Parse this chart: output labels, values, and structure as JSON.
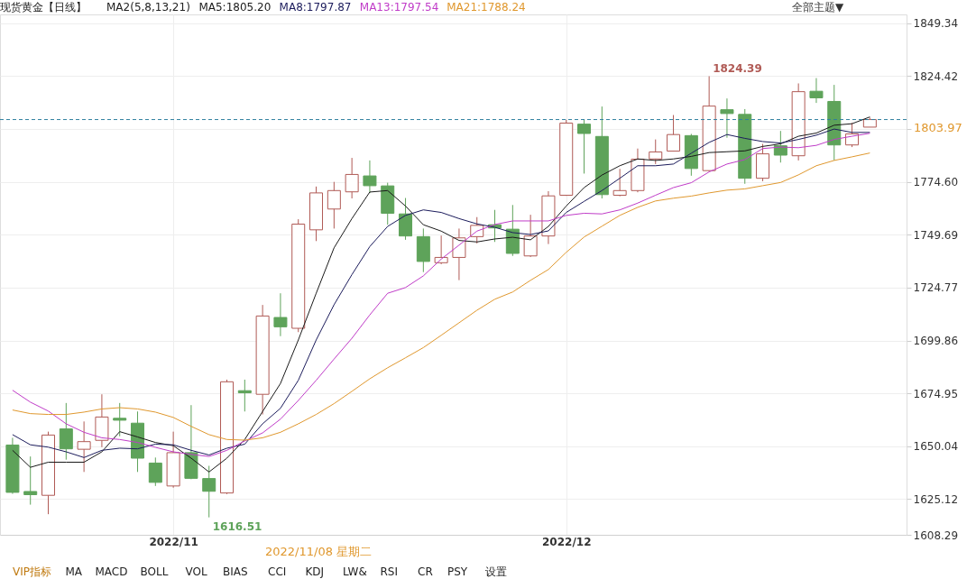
{
  "chart_data": {
    "type": "candlestick",
    "title": "现货黄金【日线】",
    "legend_title": "MA2(5,8,13,21)",
    "legend": "top",
    "grid": true,
    "categories": [
      null,
      null,
      null,
      null,
      null,
      null,
      null,
      null,
      null,
      "2022/11",
      null,
      null,
      null,
      null,
      null,
      null,
      null,
      null,
      null,
      null,
      null,
      null,
      null,
      null,
      null,
      null,
      null,
      null,
      null,
      null,
      null,
      "2022/12",
      null,
      null,
      null,
      null,
      null,
      null,
      null,
      null,
      null,
      null,
      null,
      null,
      null,
      null,
      null,
      null,
      null
    ],
    "ohlc": [
      [
        1650.6,
        1654.0,
        1627.6,
        1628.3
      ],
      [
        1628.7,
        1645.2,
        1622.5,
        1627.2
      ],
      [
        1626.9,
        1656.9,
        1618.0,
        1655.3
      ],
      [
        1658.2,
        1670.4,
        1643.7,
        1648.8
      ],
      [
        1648.6,
        1661.7,
        1637.9,
        1652.2
      ],
      [
        1652.8,
        1674.5,
        1649.6,
        1663.8
      ],
      [
        1663.2,
        1670.4,
        1654.7,
        1662.3
      ],
      [
        1660.9,
        1666.4,
        1637.9,
        1644.4
      ],
      [
        1642.1,
        1644.7,
        1631.3,
        1633.0
      ],
      [
        1631.3,
        1656.9,
        1630.5,
        1647.0
      ],
      [
        1647.0,
        1669.4,
        1634.5,
        1634.9
      ],
      [
        1634.8,
        1640.8,
        1616.51,
        1628.8
      ],
      [
        1628.0,
        1681.4,
        1627.5,
        1680.4
      ],
      [
        1676.2,
        1681.4,
        1666.4,
        1675.2
      ],
      [
        1674.5,
        1716.6,
        1665.0,
        1711.4
      ],
      [
        1710.7,
        1722.1,
        1701.9,
        1706.3
      ],
      [
        1705.6,
        1757.0,
        1703.8,
        1754.7
      ],
      [
        1752.0,
        1772.4,
        1746.7,
        1769.4
      ],
      [
        1761.8,
        1774.6,
        1752.6,
        1770.5
      ],
      [
        1769.9,
        1785.9,
        1766.8,
        1778.1
      ],
      [
        1777.4,
        1784.7,
        1769.3,
        1772.8
      ],
      [
        1772.7,
        1774.2,
        1754.4,
        1759.8
      ],
      [
        1759.5,
        1767.0,
        1747.3,
        1749.1
      ],
      [
        1748.8,
        1752.6,
        1732.1,
        1737.1
      ],
      [
        1736.5,
        1749.3,
        1735.8,
        1739.0
      ],
      [
        1739.0,
        1752.6,
        1728.3,
        1748.2
      ],
      [
        1748.8,
        1758.0,
        1745.6,
        1754.1
      ],
      [
        1754.4,
        1761.4,
        1746.3,
        1752.9
      ],
      [
        1752.3,
        1763.7,
        1739.7,
        1740.9
      ],
      [
        1739.7,
        1759.1,
        1739.2,
        1749.1
      ],
      [
        1749.1,
        1770.2,
        1745.3,
        1768.0
      ],
      [
        1768.3,
        1803.9,
        1768.0,
        1802.3
      ],
      [
        1801.8,
        1804.2,
        1778.5,
        1797.4
      ],
      [
        1796.0,
        1810.1,
        1766.8,
        1768.6
      ],
      [
        1768.3,
        1780.7,
        1767.8,
        1770.5
      ],
      [
        1770.5,
        1790.3,
        1769.7,
        1785.3
      ],
      [
        1785.4,
        1794.6,
        1783.0,
        1788.7
      ],
      [
        1789.1,
        1806.1,
        1788.9,
        1796.9
      ],
      [
        1796.4,
        1797.2,
        1777.5,
        1780.9
      ],
      [
        1779.9,
        1824.39,
        1779.6,
        1810.3
      ],
      [
        1808.6,
        1813.9,
        1795.4,
        1806.8
      ],
      [
        1806.4,
        1808.9,
        1773.7,
        1776.3
      ],
      [
        1776.3,
        1792.5,
        1774.9,
        1787.8
      ],
      [
        1791.6,
        1798.6,
        1783.7,
        1787.2
      ],
      [
        1786.9,
        1821.0,
        1784.7,
        1817.1
      ],
      [
        1817.3,
        1823.5,
        1811.8,
        1814.2
      ],
      [
        1812.5,
        1820.3,
        1784.7,
        1792.0
      ],
      [
        1792.0,
        1802.4,
        1791.0,
        1797.2
      ],
      [
        1800.4,
        1804.9,
        1800.4,
        1803.97
      ]
    ],
    "colors": [
      "#5ea35a",
      "#5ea35a",
      "#b05a55",
      "#5ea35a",
      "#b05a55",
      "#b05a55",
      "#5ea35a",
      "#5ea35a",
      "#5ea35a",
      "#b05a55",
      "#5ea35a",
      "#5ea35a",
      "#b05a55",
      "#5ea35a",
      "#b05a55",
      "#5ea35a",
      "#b05a55",
      "#b05a55",
      "#b05a55",
      "#b05a55",
      "#5ea35a",
      "#5ea35a",
      "#5ea35a",
      "#5ea35a",
      "#b05a55",
      "#b05a55",
      "#b05a55",
      "#5ea35a",
      "#5ea35a",
      "#b05a55",
      "#b05a55",
      "#b05a55",
      "#5ea35a",
      "#5ea35a",
      "#b05a55",
      "#b05a55",
      "#b05a55",
      "#b05a55",
      "#5ea35a",
      "#b05a55",
      "#5ea35a",
      "#5ea35a",
      "#b05a55",
      "#5ea35a",
      "#b05a55",
      "#5ea35a",
      "#5ea35a",
      "#b05a55",
      "#b05a55"
    ],
    "series": [
      {
        "name": "MA5:1805.20",
        "type": "line",
        "color": "#1a1a1a",
        "values": [
          1648.1,
          1640.1,
          1642.5,
          1642.5,
          1642.5,
          1647.4,
          1656.9,
          1654.4,
          1651.8,
          1650.3,
          1644.4,
          1637.9,
          1644.4,
          1653.2,
          1666.4,
          1679.6,
          1700.1,
          1722.1,
          1743.5,
          1757.3,
          1769.8,
          1770.5,
          1763.2,
          1754.4,
          1751.4,
          1747.0,
          1746.3,
          1747.7,
          1748.5,
          1747.3,
          1753.6,
          1763.2,
          1771.9,
          1777.8,
          1782.2,
          1785.4,
          1784.7,
          1785.4,
          1786.6,
          1788.4,
          1788.8,
          1789.2,
          1791.3,
          1792.5,
          1796.1,
          1797.6,
          1801.3,
          1802.0,
          1805.2
        ]
      },
      {
        "name": "MA8:1797.87",
        "type": "line",
        "color": "#1c1c5c",
        "values": [
          1655.5,
          1650.7,
          1649.6,
          1647.4,
          1644.7,
          1648.1,
          1649.1,
          1648.8,
          1651.0,
          1650.7,
          1648.1,
          1645.9,
          1649.1,
          1651.0,
          1660.6,
          1667.9,
          1681.1,
          1700.1,
          1716.7,
          1730.9,
          1744.1,
          1753.6,
          1758.8,
          1761.4,
          1760.2,
          1757.3,
          1754.8,
          1753.2,
          1750.7,
          1749.8,
          1751.5,
          1760.2,
          1765.4,
          1770.5,
          1776.3,
          1782.2,
          1782.2,
          1783.0,
          1788.1,
          1793.2,
          1796.9,
          1795.1,
          1793.6,
          1792.9,
          1794.6,
          1796.6,
          1799.5,
          1797.9,
          1797.9
        ]
      },
      {
        "name": "MA13:1797.54",
        "type": "line",
        "color": "#c03cc8",
        "values": [
          1676.4,
          1670.8,
          1666.6,
          1660.6,
          1656.6,
          1654.0,
          1653.2,
          1651.8,
          1649.5,
          1647.4,
          1646.2,
          1645.2,
          1648.1,
          1652.5,
          1656.3,
          1662.8,
          1671.6,
          1681.1,
          1691.1,
          1700.9,
          1711.9,
          1722.1,
          1724.8,
          1730.3,
          1738.2,
          1744.8,
          1751.4,
          1754.5,
          1756.2,
          1756.2,
          1756.2,
          1758.8,
          1759.8,
          1759.5,
          1761.4,
          1764.6,
          1768.3,
          1771.9,
          1774.2,
          1779.3,
          1783.0,
          1785.1,
          1790.3,
          1791.0,
          1790.7,
          1791.8,
          1794.6,
          1796.1,
          1797.5
        ]
      },
      {
        "name": "MA21:1788.24",
        "type": "line",
        "color": "#e0982e",
        "values": [
          1667.1,
          1665.4,
          1665.0,
          1665.0,
          1666.1,
          1667.6,
          1668.2,
          1667.6,
          1666.1,
          1663.6,
          1659.4,
          1655.5,
          1653.2,
          1652.9,
          1654.0,
          1656.6,
          1660.6,
          1665.0,
          1670.1,
          1675.9,
          1681.8,
          1687.0,
          1691.7,
          1696.5,
          1702.3,
          1708.2,
          1714.1,
          1719.3,
          1722.7,
          1728.2,
          1733.3,
          1741.4,
          1748.6,
          1753.7,
          1758.8,
          1762.6,
          1765.6,
          1766.9,
          1767.9,
          1769.4,
          1770.7,
          1771.3,
          1772.8,
          1774.3,
          1777.9,
          1782.2,
          1784.7,
          1786.4,
          1788.2
        ]
      }
    ],
    "ylim": [
      1608.29,
      1853.5
    ],
    "yticks": [
      {
        "value": 1608.29,
        "label": "1608.29"
      },
      {
        "value": 1625.12,
        "label": "1625.12"
      },
      {
        "value": 1650.04,
        "label": "1650.04"
      },
      {
        "value": 1674.95,
        "label": "1674.95"
      },
      {
        "value": 1699.86,
        "label": "1699.86"
      },
      {
        "value": 1724.77,
        "label": "1724.77"
      },
      {
        "value": 1749.69,
        "label": "1749.69"
      },
      {
        "value": 1774.6,
        "label": "1774.60"
      },
      {
        "value": 1799.51,
        "label": null
      },
      {
        "value": 1824.42,
        "label": "1824.42"
      },
      {
        "value": 1849.34,
        "label": "1849.34"
      }
    ],
    "ref_lines": [
      {
        "axis": "y",
        "value": 1803.97,
        "label": "1803.97",
        "color": "#2f7f9f",
        "line_style": "dashed"
      }
    ],
    "annotations": [
      "1824.39",
      "1616.51",
      "2022/11/08 星期二",
      "全部主题▼",
      "VIP指标",
      "MA",
      "MACD",
      "BOLL",
      "VOL",
      "BIAS",
      "CCI",
      "KDJ",
      "LW&",
      "RSI",
      "CR",
      "PSY",
      "设置"
    ]
  }
}
